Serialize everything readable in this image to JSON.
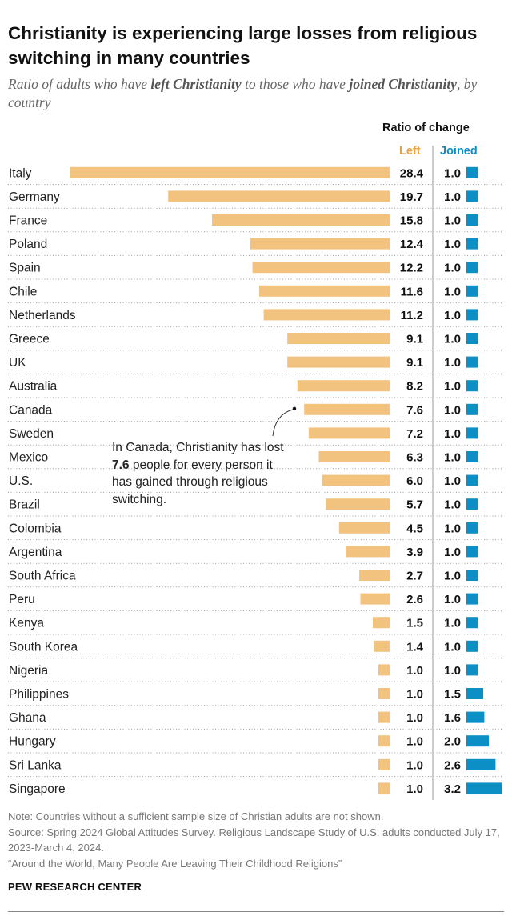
{
  "title": "Christianity is experiencing large losses from religious switching in many countries",
  "subtitle": {
    "part1": "Ratio of adults who have ",
    "bold1": "left Christianity",
    "part2": " to those who have ",
    "bold2": "joined Christianity",
    "part3": ", by country"
  },
  "header": {
    "ratio_label": "Ratio of change",
    "left_label": "Left",
    "joined_label": "Joined"
  },
  "annotation": {
    "part1": "In Canada, Christianity has lost ",
    "value": "7.6",
    "part2": " people for every person it has gained through religious switching."
  },
  "notes": {
    "note": "Note: Countries without a sufficient sample size of Christian adults are not shown.",
    "source": "Source: Spring 2024 Global Attitudes Survey. Religious Landscape Study of U.S. adults conducted July 17, 2023-March 4, 2024.",
    "report": "“Around the World, Many People Are Leaving Their Childhood Religions”"
  },
  "footer": "PEW RESEARCH CENTER",
  "colors": {
    "left": "#F2C37F",
    "joined": "#0B8FC4",
    "left_text": "#E9A23B",
    "joined_text": "#0B8FC4",
    "dots": "#9A9A9A",
    "divider": "#9A9A9A"
  },
  "chart_data": {
    "type": "bar",
    "orientation": "horizontal",
    "categories": [
      "Italy",
      "Germany",
      "France",
      "Poland",
      "Spain",
      "Chile",
      "Netherlands",
      "Greece",
      "UK",
      "Australia",
      "Canada",
      "Sweden",
      "Mexico",
      "U.S.",
      "Brazil",
      "Colombia",
      "Argentina",
      "South Africa",
      "Peru",
      "Kenya",
      "South Korea",
      "Nigeria",
      "Philippines",
      "Ghana",
      "Hungary",
      "Sri Lanka",
      "Singapore"
    ],
    "series": [
      {
        "name": "Left",
        "values": [
          28.4,
          19.7,
          15.8,
          12.4,
          12.2,
          11.6,
          11.2,
          9.1,
          9.1,
          8.2,
          7.6,
          7.2,
          6.3,
          6.0,
          5.7,
          4.5,
          3.9,
          2.7,
          2.6,
          1.5,
          1.4,
          1.0,
          1.0,
          1.0,
          1.0,
          1.0,
          1.0
        ]
      },
      {
        "name": "Joined",
        "values": [
          1.0,
          1.0,
          1.0,
          1.0,
          1.0,
          1.0,
          1.0,
          1.0,
          1.0,
          1.0,
          1.0,
          1.0,
          1.0,
          1.0,
          1.0,
          1.0,
          1.0,
          1.0,
          1.0,
          1.0,
          1.0,
          1.0,
          1.5,
          1.6,
          2.0,
          2.6,
          3.2
        ]
      }
    ],
    "grid": false,
    "legend": "top-right"
  }
}
